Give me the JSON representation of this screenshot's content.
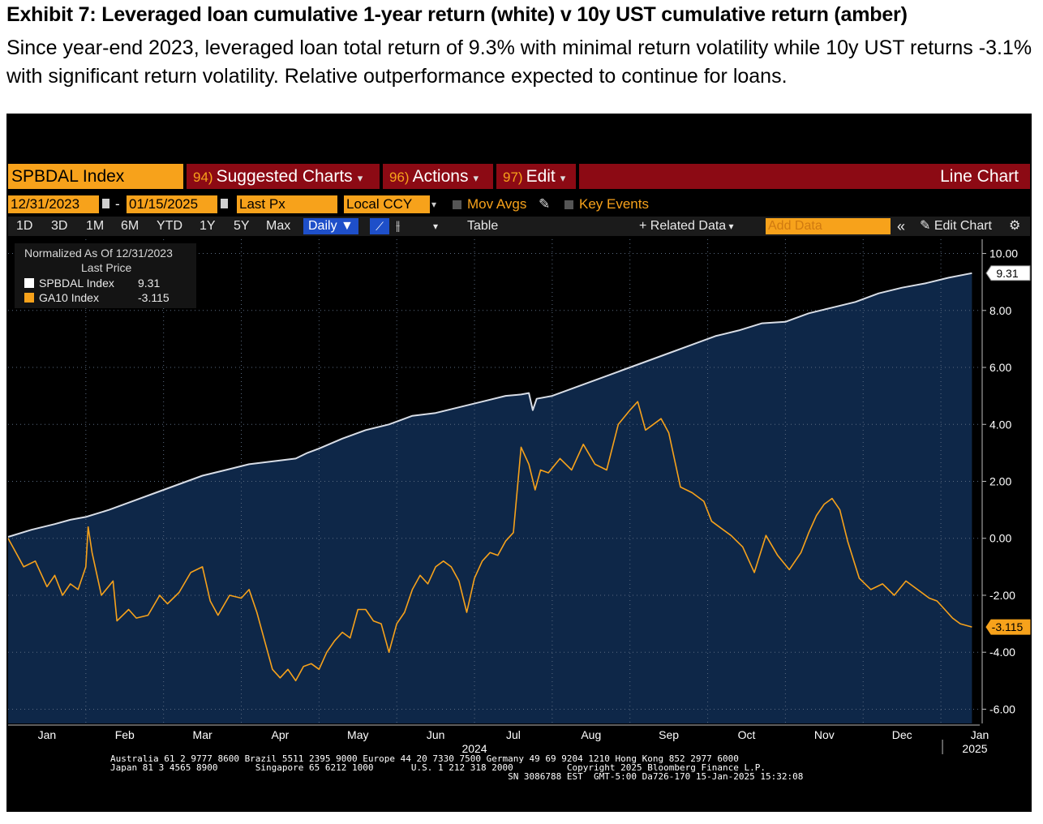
{
  "exhibit": {
    "title": "Exhibit 7: Leveraged loan cumulative 1-year return (white) v 10y UST cumulative return (amber)",
    "subtitle": "Since year-end 2023, leveraged loan total return of 9.3% with minimal return volatility while 10y UST returns -3.1% with significant return volatility. Relative outperformance expected to continue for loans."
  },
  "toolbar": {
    "ticker": "SPBDAL Index",
    "menus": [
      {
        "num": "94)",
        "label": "Suggested Charts"
      },
      {
        "num": "96)",
        "label": "Actions"
      },
      {
        "num": "97)",
        "label": "Edit"
      }
    ],
    "chart_type": "Line Chart",
    "start_date": "12/31/2023",
    "end_date": "01/15/2025",
    "field": "Last Px",
    "currency": "Local CCY",
    "mov_avgs": "Mov Avgs",
    "key_events": "Key Events",
    "ranges": [
      "1D",
      "3D",
      "1M",
      "6M",
      "YTD",
      "1Y",
      "5Y",
      "Max"
    ],
    "frequency": "Daily",
    "table_label": "Table",
    "related_data": "Related Data",
    "add_data_placeholder": "Add Data",
    "edit_chart": "Edit Chart"
  },
  "legend": {
    "line1": "Normalized As Of 12/31/2023",
    "line2": "Last Price",
    "rows": [
      {
        "name": "SPBDAL Index",
        "value": "9.31",
        "color": "#ffffff"
      },
      {
        "name": "GA10 Index",
        "value": "-3.115",
        "color": "#f7a21b"
      }
    ]
  },
  "footer": {
    "line1": "Australia 61 2 9777 8600 Brazil 5511 2395 9000 Europe 44 20 7330 7500 Germany 49 69 9204 1210 Hong Kong 852 2977 6000",
    "line2": "Japan 81 3 4565 8900       Singapore 65 6212 1000       U.S. 1 212 318 2000          Copyright 2025 Bloomberg Finance L.P.",
    "line3": "                                                                          SN 3086788 EST  GMT-5:00 Da726-170 15-Jan-2025 15:32:08"
  },
  "chart_data": {
    "type": "line",
    "ylim": [
      -6.5,
      10.5
    ],
    "yticks": [
      10,
      8,
      6,
      4,
      2,
      0,
      -2,
      -4,
      -6
    ],
    "ytick_labels": [
      "10.00",
      "8.00",
      "6.00",
      "4.00",
      "2.00",
      "0.00",
      "-2.00",
      "-4.00",
      "-6.00"
    ],
    "xlim": [
      0,
      12.5
    ],
    "months": [
      "Jan",
      "Feb",
      "Mar",
      "Apr",
      "May",
      "Jun",
      "Jul",
      "Aug",
      "Sep",
      "Oct",
      "Nov",
      "Dec",
      "Jan"
    ],
    "year_labels": [
      "2024",
      "2025"
    ],
    "series": [
      {
        "name": "SPBDAL Index",
        "color": "#ffffff",
        "last_label": "9.31",
        "x": [
          0,
          0.3,
          0.6,
          0.8,
          1.0,
          1.3,
          1.6,
          1.9,
          2.2,
          2.5,
          2.8,
          3.1,
          3.4,
          3.7,
          3.85,
          4.0,
          4.3,
          4.6,
          4.9,
          5.2,
          5.5,
          5.8,
          6.1,
          6.4,
          6.6,
          6.7,
          6.75,
          6.8,
          7.0,
          7.3,
          7.6,
          7.9,
          8.2,
          8.5,
          8.8,
          9.1,
          9.4,
          9.7,
          10.0,
          10.3,
          10.6,
          10.9,
          11.2,
          11.5,
          11.8,
          12.1,
          12.4
        ],
        "y": [
          0.05,
          0.3,
          0.5,
          0.65,
          0.75,
          1.0,
          1.3,
          1.6,
          1.9,
          2.2,
          2.4,
          2.6,
          2.7,
          2.8,
          3.0,
          3.15,
          3.5,
          3.8,
          4.0,
          4.3,
          4.4,
          4.6,
          4.8,
          5.0,
          5.05,
          5.1,
          4.5,
          4.9,
          5.0,
          5.3,
          5.6,
          5.9,
          6.2,
          6.5,
          6.8,
          7.1,
          7.3,
          7.55,
          7.6,
          7.9,
          8.1,
          8.3,
          8.6,
          8.8,
          8.95,
          9.15,
          9.31
        ]
      },
      {
        "name": "GA10 Index",
        "color": "#f7a21b",
        "last_label": "-3.115",
        "x": [
          0,
          0.1,
          0.2,
          0.35,
          0.5,
          0.6,
          0.7,
          0.8,
          0.9,
          1.0,
          1.03,
          1.08,
          1.2,
          1.35,
          1.4,
          1.55,
          1.65,
          1.8,
          1.95,
          2.05,
          2.2,
          2.35,
          2.5,
          2.6,
          2.7,
          2.85,
          3.0,
          3.1,
          3.2,
          3.3,
          3.4,
          3.5,
          3.6,
          3.7,
          3.8,
          3.9,
          4.0,
          4.1,
          4.2,
          4.3,
          4.4,
          4.5,
          4.6,
          4.7,
          4.8,
          4.9,
          5.0,
          5.1,
          5.2,
          5.3,
          5.4,
          5.5,
          5.6,
          5.7,
          5.8,
          5.9,
          6.0,
          6.1,
          6.2,
          6.3,
          6.4,
          6.5,
          6.6,
          6.7,
          6.78,
          6.85,
          6.95,
          7.1,
          7.25,
          7.4,
          7.55,
          7.7,
          7.85,
          8.0,
          8.1,
          8.2,
          8.3,
          8.4,
          8.5,
          8.65,
          8.8,
          8.95,
          9.05,
          9.15,
          9.3,
          9.45,
          9.6,
          9.75,
          9.9,
          10.05,
          10.2,
          10.3,
          10.4,
          10.5,
          10.6,
          10.7,
          10.8,
          10.95,
          11.1,
          11.25,
          11.4,
          11.55,
          11.7,
          11.85,
          11.95,
          12.05,
          12.15,
          12.25,
          12.4
        ],
        "y": [
          0,
          -0.5,
          -1.0,
          -0.8,
          -1.7,
          -1.3,
          -2.0,
          -1.6,
          -1.8,
          -1.0,
          0.4,
          -0.5,
          -2.0,
          -1.5,
          -2.9,
          -2.5,
          -2.8,
          -2.7,
          -2.0,
          -2.3,
          -1.9,
          -1.2,
          -1.0,
          -2.2,
          -2.7,
          -2.0,
          -2.1,
          -1.8,
          -2.6,
          -3.6,
          -4.6,
          -4.9,
          -4.6,
          -5.0,
          -4.5,
          -4.4,
          -4.6,
          -4.0,
          -3.6,
          -3.3,
          -3.5,
          -2.5,
          -2.5,
          -2.9,
          -3.0,
          -4.0,
          -3.0,
          -2.6,
          -1.8,
          -1.3,
          -1.6,
          -1.0,
          -0.8,
          -1.0,
          -1.5,
          -2.6,
          -1.4,
          -0.8,
          -0.5,
          -0.6,
          -0.1,
          0.2,
          3.2,
          2.6,
          1.7,
          2.4,
          2.3,
          2.8,
          2.4,
          3.3,
          2.6,
          2.4,
          4.0,
          4.5,
          4.8,
          3.8,
          4.0,
          4.2,
          3.7,
          1.8,
          1.6,
          1.3,
          0.6,
          0.4,
          0.1,
          -0.3,
          -1.2,
          0.1,
          -0.6,
          -1.1,
          -0.5,
          0.2,
          0.8,
          1.2,
          1.4,
          1.0,
          -0.1,
          -1.4,
          -1.8,
          -1.6,
          -2.0,
          -1.5,
          -1.8,
          -2.1,
          -2.2,
          -2.5,
          -2.8,
          -3.0,
          -3.115
        ]
      }
    ]
  }
}
